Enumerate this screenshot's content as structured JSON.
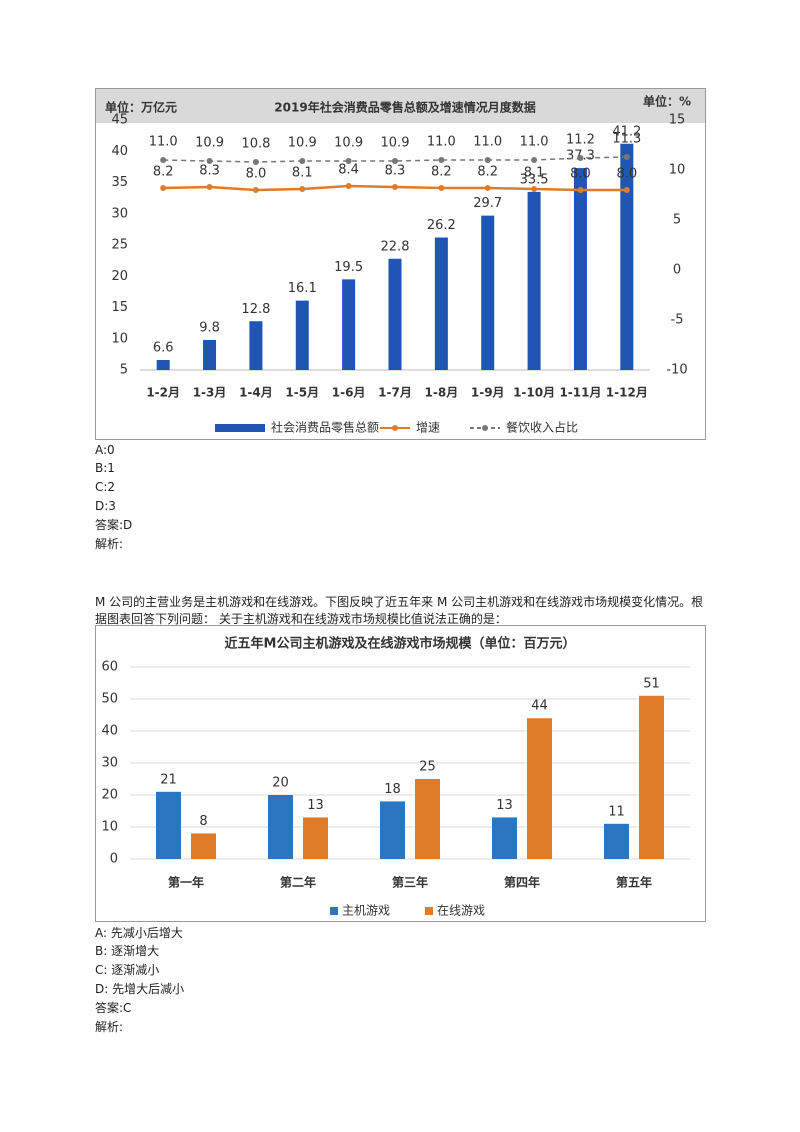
{
  "chart_data": [
    {
      "type": "bar",
      "title": "2019年社会消费品零售总额及增速情况月度数据",
      "y_unit": "单位：万亿元",
      "y2_unit": "单位：%",
      "categories": [
        "1-2月",
        "1-3月",
        "1-4月",
        "1-5月",
        "1-6月",
        "1-7月",
        "1-8月",
        "1-9月",
        "1-10月",
        "1-11月",
        "1-12月"
      ],
      "series": [
        {
          "name": "社会消费品零售总额",
          "type": "bar",
          "color": "#1f56b4",
          "values": [
            6.6,
            9.8,
            12.8,
            16.1,
            19.5,
            22.8,
            26.2,
            29.7,
            33.5,
            37.3,
            41.2
          ]
        },
        {
          "name": "增速",
          "type": "line",
          "axis": "y2",
          "color": "#e07b2a",
          "values": [
            8.2,
            8.3,
            8.0,
            8.1,
            8.4,
            8.3,
            8.2,
            8.2,
            8.1,
            8.0,
            8.0
          ],
          "value_labels": [
            "8.2",
            "8.3",
            "8.0",
            "8.1",
            "8.4",
            "8.3",
            "8.2",
            "8.2",
            "8.1",
            "8.0",
            "8.0"
          ]
        },
        {
          "name": "餐饮收入占比",
          "type": "line",
          "axis": "y2",
          "dashed": true,
          "color": "#777777",
          "values": [
            11.0,
            10.9,
            10.8,
            10.9,
            10.9,
            10.9,
            11.0,
            11.0,
            11.0,
            11.2,
            11.3
          ],
          "value_labels": [
            "11.0",
            "10.9",
            "10.8",
            "10.9",
            "10.9",
            "10.9",
            "11.0",
            "11.0",
            "11.0",
            "11.2",
            "11.3"
          ]
        }
      ],
      "ylim": [
        5,
        45
      ],
      "yticks": [
        5,
        10,
        15,
        20,
        25,
        30,
        35,
        40,
        45
      ],
      "y2lim": [
        -10,
        15
      ],
      "y2ticks": [
        -10,
        -5,
        0,
        5,
        10,
        15
      ],
      "grid": false
    },
    {
      "type": "bar",
      "title": "近五年M公司主机游戏及在线游戏市场规模（单位：百万元）",
      "categories": [
        "第一年",
        "第二年",
        "第三年",
        "第四年",
        "第五年"
      ],
      "series": [
        {
          "name": "主机游戏",
          "type": "bar",
          "color": "#2e75c0",
          "values": [
            21,
            20,
            18,
            13,
            11
          ]
        },
        {
          "name": "在线游戏",
          "type": "bar",
          "color": "#e07b2a",
          "values": [
            8,
            13,
            25,
            44,
            51
          ]
        }
      ],
      "ylim": [
        0,
        60
      ],
      "yticks": [
        0,
        10,
        20,
        30,
        40,
        50,
        60
      ],
      "grid": true
    }
  ],
  "question1": {
    "options": [
      "A:0",
      "B:1",
      "C:2",
      "D:3"
    ],
    "answer": "答案:D",
    "analysis": "解析:"
  },
  "question2": {
    "stem": "M 公司的主营业务是主机游戏和在线游戏。下图反映了近五年来 M 公司主机游戏和在线游戏市场规模变化情况。根据图表回答下列问题：  关于主机游戏和在线游戏市场规模比值说法正确的是：",
    "options": [
      "A:  先减小后增大",
      "B:  逐渐增大",
      "C:  逐渐减小",
      "D:  先增大后减小"
    ],
    "answer": "答案:C",
    "analysis": "解析:"
  }
}
